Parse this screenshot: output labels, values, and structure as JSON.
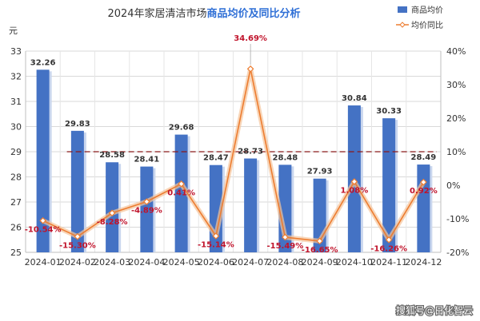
{
  "chart_data": {
    "type": "bar",
    "title_prefix": "2024年家居清洁市场",
    "title_highlight": "商品均价及同比分析",
    "ylabel": "元",
    "categories": [
      "2024-01",
      "2024-02",
      "2024-03",
      "2024-04",
      "2024-05",
      "2024-06",
      "2024-07",
      "2024-08",
      "2024-09",
      "2024-10",
      "2024-11",
      "2024-12"
    ],
    "series": [
      {
        "name": "商品均价",
        "type": "bar",
        "axis": "left",
        "color": "#4472c4",
        "values": [
          32.26,
          29.83,
          28.58,
          28.41,
          29.68,
          28.47,
          28.73,
          28.48,
          27.93,
          30.84,
          30.33,
          28.49
        ],
        "labels": [
          "32.26",
          "29.83",
          "28.58",
          "28.41",
          "29.68",
          "28.47",
          "28.73",
          "28.48",
          "27.93",
          "30.84",
          "30.33",
          "28.49"
        ]
      },
      {
        "name": "均价同比",
        "type": "line",
        "axis": "right",
        "color": "#ed7d31",
        "values": [
          -10.54,
          -15.3,
          -8.28,
          -4.89,
          0.41,
          -15.14,
          34.69,
          -15.49,
          -16.65,
          1.08,
          -16.26,
          0.92
        ],
        "labels": [
          "-10.54%",
          "-15.30%",
          "-8.28%",
          "-4.89%",
          "0.41%",
          "-15.14%",
          "34.69%",
          "-15.49%",
          "-16.65%",
          "1.08%",
          "-16.26%",
          "0.92%"
        ]
      }
    ],
    "ylim_left": [
      25,
      33
    ],
    "yticks_left": [
      "25",
      "26",
      "27",
      "28",
      "29",
      "30",
      "31",
      "32",
      "33"
    ],
    "ylim_right": [
      -20,
      40
    ],
    "yticks_right": [
      "-20%",
      "-10%",
      "0%",
      "10%",
      "20%",
      "30%",
      "40%"
    ],
    "reference_line": {
      "axis": "right",
      "value": 10,
      "color": "#8b1a1a",
      "style": "dashed"
    },
    "grid": true,
    "legend_position": "top-right"
  },
  "watermark": "搜狐号@日化智云"
}
